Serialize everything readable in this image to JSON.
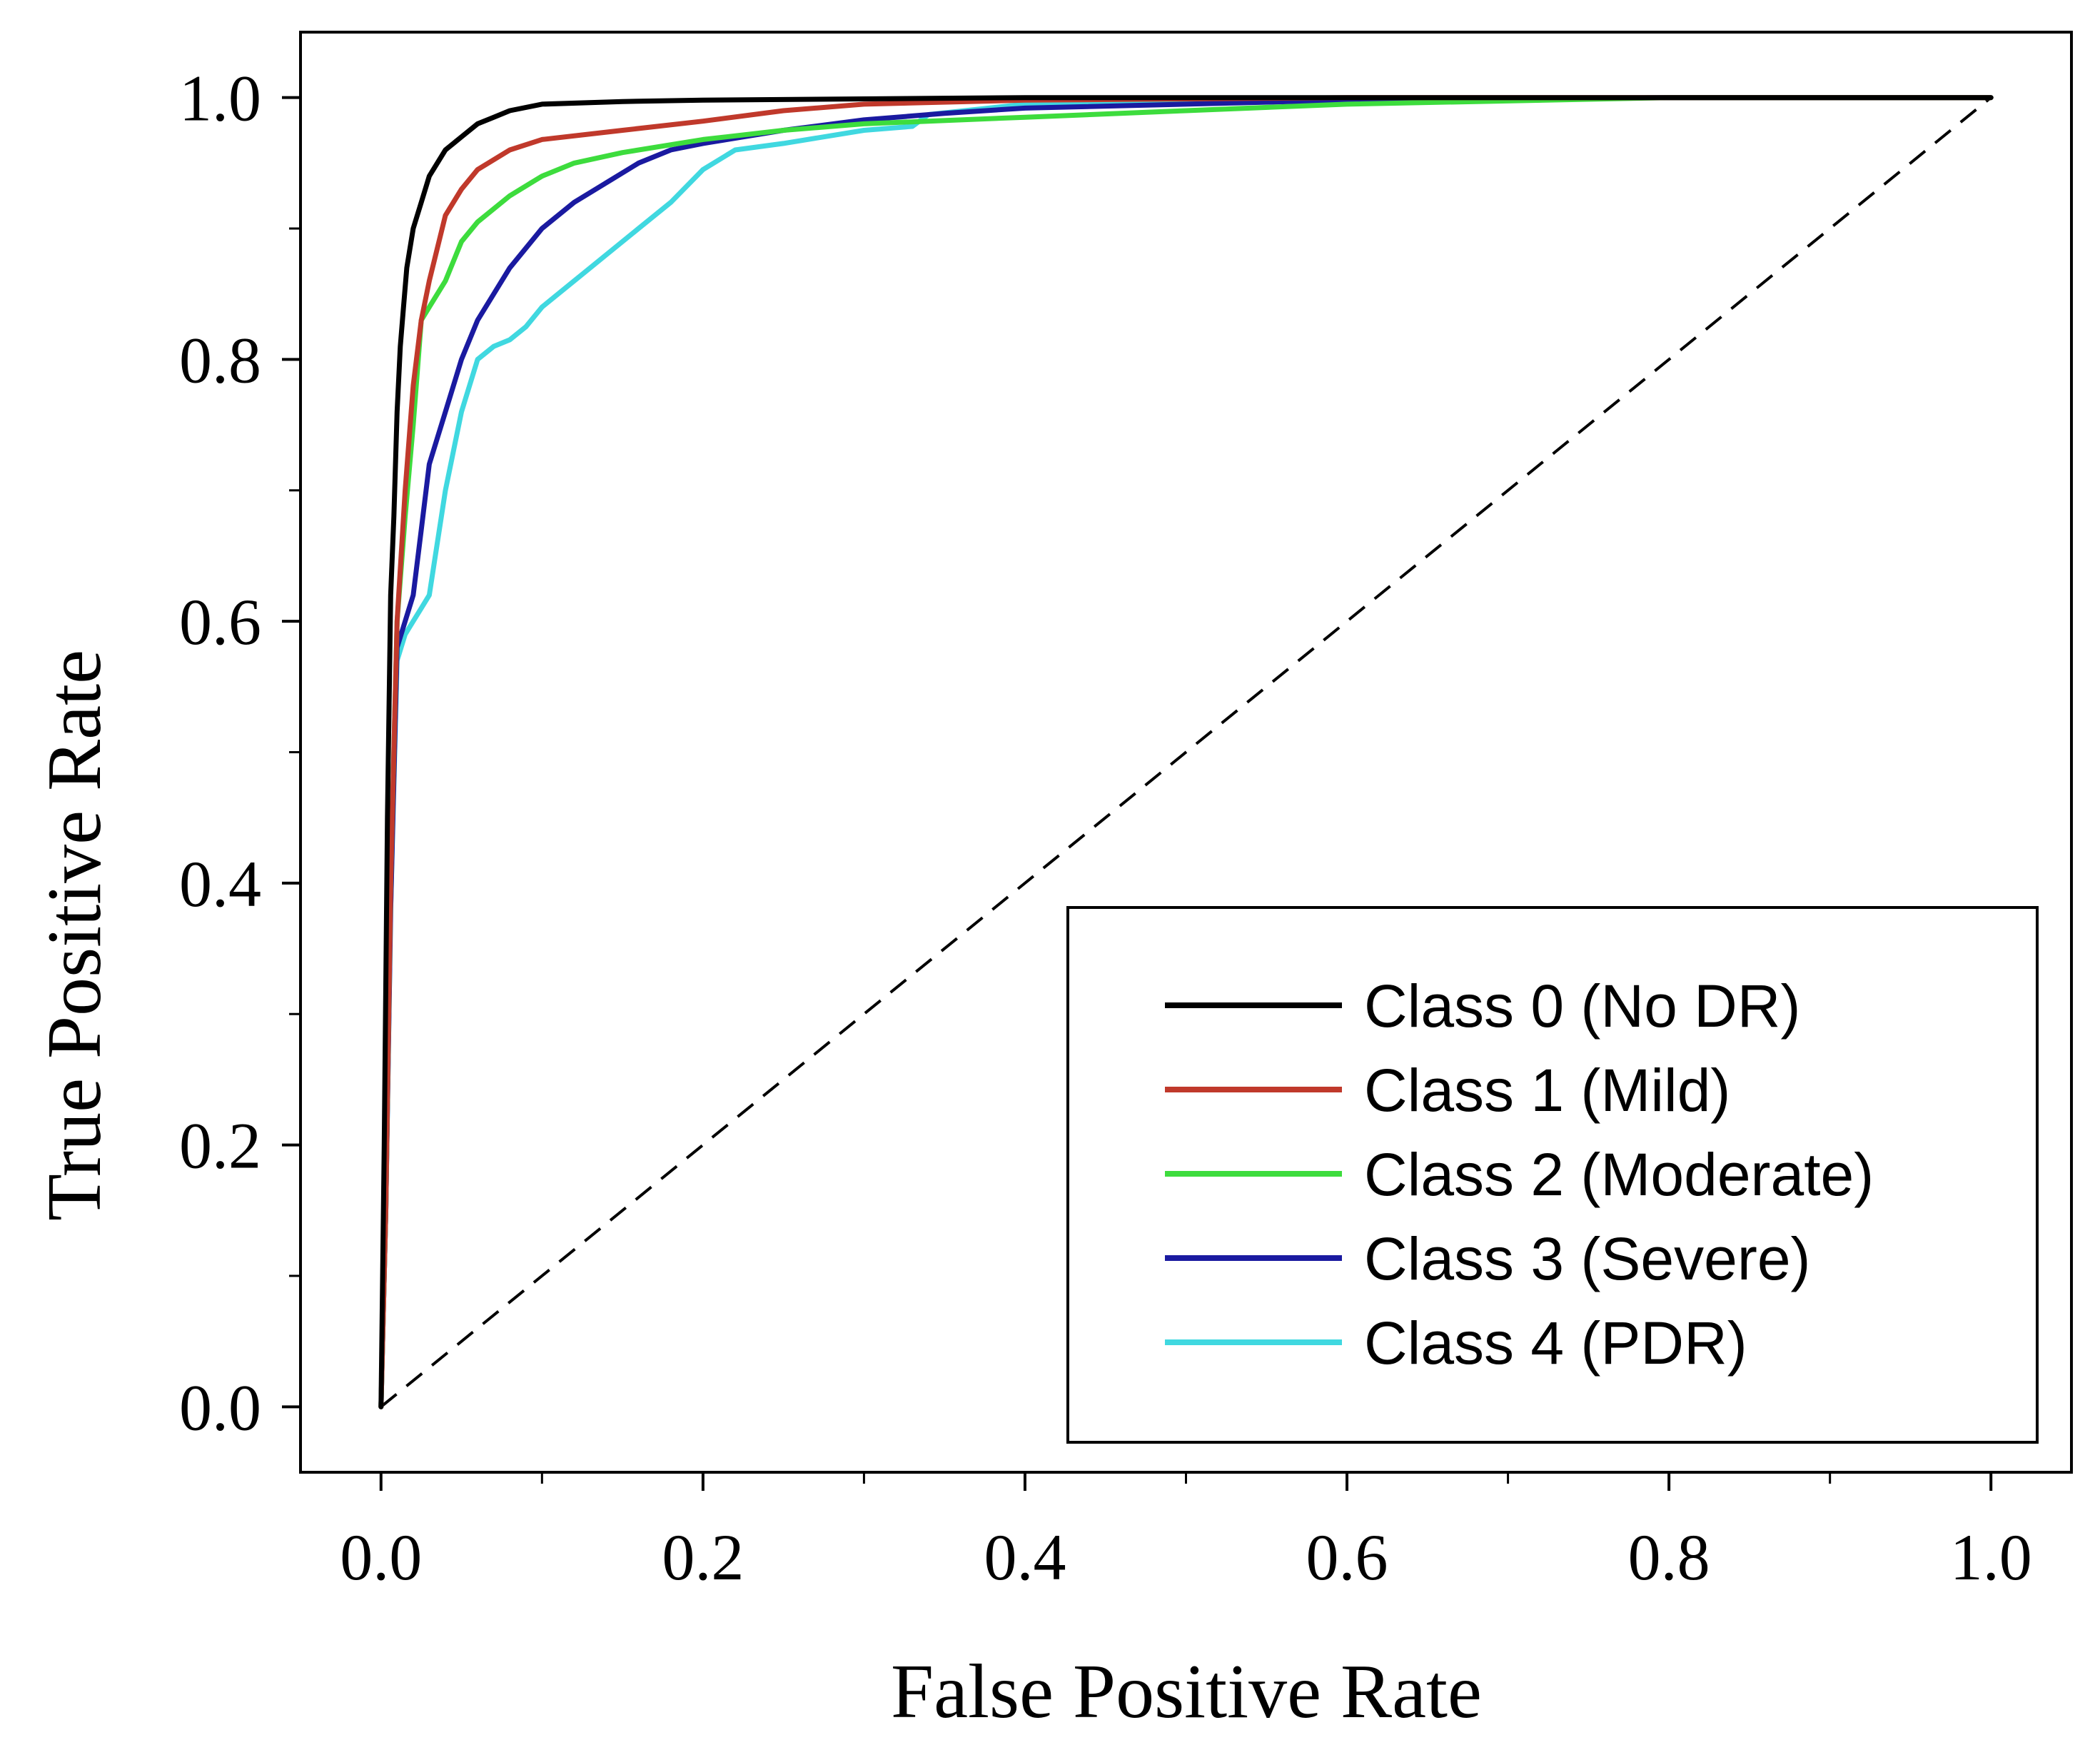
{
  "chart_data": {
    "type": "line",
    "title": "",
    "xlabel": "False Positive Rate",
    "ylabel": "True Positive Rate",
    "xlim": [
      -0.05,
      1.05
    ],
    "ylim": [
      -0.05,
      1.05
    ],
    "xticks": [
      0.0,
      0.2,
      0.4,
      0.6,
      0.8,
      1.0
    ],
    "xtick_labels": [
      "0.0",
      "0.2",
      "0.4",
      "0.6",
      "0.8",
      "1.0"
    ],
    "xminor_ticks": [
      0.1,
      0.3,
      0.5,
      0.7,
      0.9
    ],
    "yticks": [
      0.0,
      0.2,
      0.4,
      0.6,
      0.8,
      1.0
    ],
    "ytick_labels": [
      "0.0",
      "0.2",
      "0.4",
      "0.6",
      "0.8",
      "1.0"
    ],
    "yminor_ticks": [
      0.1,
      0.3,
      0.5,
      0.7,
      0.9
    ],
    "grid": false,
    "legend_position": "bottom-right",
    "reference_line": {
      "x": [
        0.0,
        1.0
      ],
      "y": [
        0.0,
        1.0
      ],
      "style": "dashed",
      "color": "#000000"
    },
    "series": [
      {
        "name": "Class 0 (No DR)",
        "color": "#000000",
        "x": [
          0.0,
          0.002,
          0.004,
          0.006,
          0.008,
          0.01,
          0.012,
          0.014,
          0.016,
          0.02,
          0.025,
          0.03,
          0.04,
          0.05,
          0.06,
          0.07,
          0.08,
          0.1,
          0.15,
          0.2,
          0.3,
          0.4,
          0.6,
          0.8,
          1.0
        ],
        "y": [
          0.0,
          0.2,
          0.45,
          0.62,
          0.68,
          0.76,
          0.81,
          0.84,
          0.87,
          0.9,
          0.92,
          0.94,
          0.96,
          0.97,
          0.98,
          0.985,
          0.99,
          0.995,
          0.997,
          0.998,
          0.999,
          1.0,
          1.0,
          1.0,
          1.0
        ]
      },
      {
        "name": "Class 1 (Mild)",
        "color": "#c0392b",
        "x": [
          0.0,
          0.003,
          0.006,
          0.01,
          0.015,
          0.02,
          0.025,
          0.03,
          0.04,
          0.05,
          0.06,
          0.08,
          0.1,
          0.15,
          0.2,
          0.25,
          0.3,
          0.4,
          0.6,
          0.8,
          1.0
        ],
        "y": [
          0.0,
          0.15,
          0.4,
          0.6,
          0.7,
          0.78,
          0.83,
          0.86,
          0.91,
          0.93,
          0.945,
          0.96,
          0.968,
          0.975,
          0.982,
          0.99,
          0.995,
          0.998,
          1.0,
          1.0,
          1.0
        ]
      },
      {
        "name": "Class 2 (Moderate)",
        "color": "#3ddc3d",
        "x": [
          0.0,
          0.003,
          0.006,
          0.01,
          0.015,
          0.02,
          0.025,
          0.03,
          0.04,
          0.05,
          0.06,
          0.08,
          0.1,
          0.12,
          0.15,
          0.2,
          0.25,
          0.3,
          0.4,
          0.5,
          0.6,
          0.8,
          1.0
        ],
        "y": [
          0.0,
          0.15,
          0.4,
          0.6,
          0.68,
          0.75,
          0.83,
          0.84,
          0.86,
          0.89,
          0.905,
          0.925,
          0.94,
          0.95,
          0.958,
          0.968,
          0.975,
          0.98,
          0.985,
          0.99,
          0.995,
          1.0,
          1.0
        ]
      },
      {
        "name": "Class 3 (Severe)",
        "color": "#1a1aa0",
        "x": [
          0.0,
          0.003,
          0.006,
          0.01,
          0.015,
          0.02,
          0.025,
          0.03,
          0.04,
          0.05,
          0.06,
          0.07,
          0.08,
          0.1,
          0.12,
          0.14,
          0.16,
          0.18,
          0.2,
          0.25,
          0.3,
          0.35,
          0.4,
          0.6,
          0.8,
          1.0
        ],
        "y": [
          0.0,
          0.15,
          0.38,
          0.58,
          0.6,
          0.62,
          0.67,
          0.72,
          0.76,
          0.8,
          0.83,
          0.85,
          0.87,
          0.9,
          0.92,
          0.935,
          0.95,
          0.96,
          0.965,
          0.975,
          0.983,
          0.988,
          0.992,
          0.998,
          1.0,
          1.0
        ]
      },
      {
        "name": "Class 4 (PDR)",
        "color": "#40d8e0",
        "x": [
          0.0,
          0.003,
          0.006,
          0.01,
          0.015,
          0.02,
          0.025,
          0.03,
          0.035,
          0.04,
          0.05,
          0.06,
          0.07,
          0.08,
          0.09,
          0.1,
          0.12,
          0.14,
          0.16,
          0.18,
          0.2,
          0.22,
          0.25,
          0.3,
          0.33,
          0.34,
          0.4,
          0.6,
          0.8,
          1.0
        ],
        "y": [
          0.0,
          0.15,
          0.38,
          0.57,
          0.59,
          0.6,
          0.61,
          0.62,
          0.66,
          0.7,
          0.76,
          0.8,
          0.81,
          0.815,
          0.825,
          0.84,
          0.86,
          0.88,
          0.9,
          0.92,
          0.945,
          0.96,
          0.965,
          0.975,
          0.978,
          0.987,
          0.995,
          0.998,
          1.0,
          1.0
        ]
      }
    ]
  }
}
